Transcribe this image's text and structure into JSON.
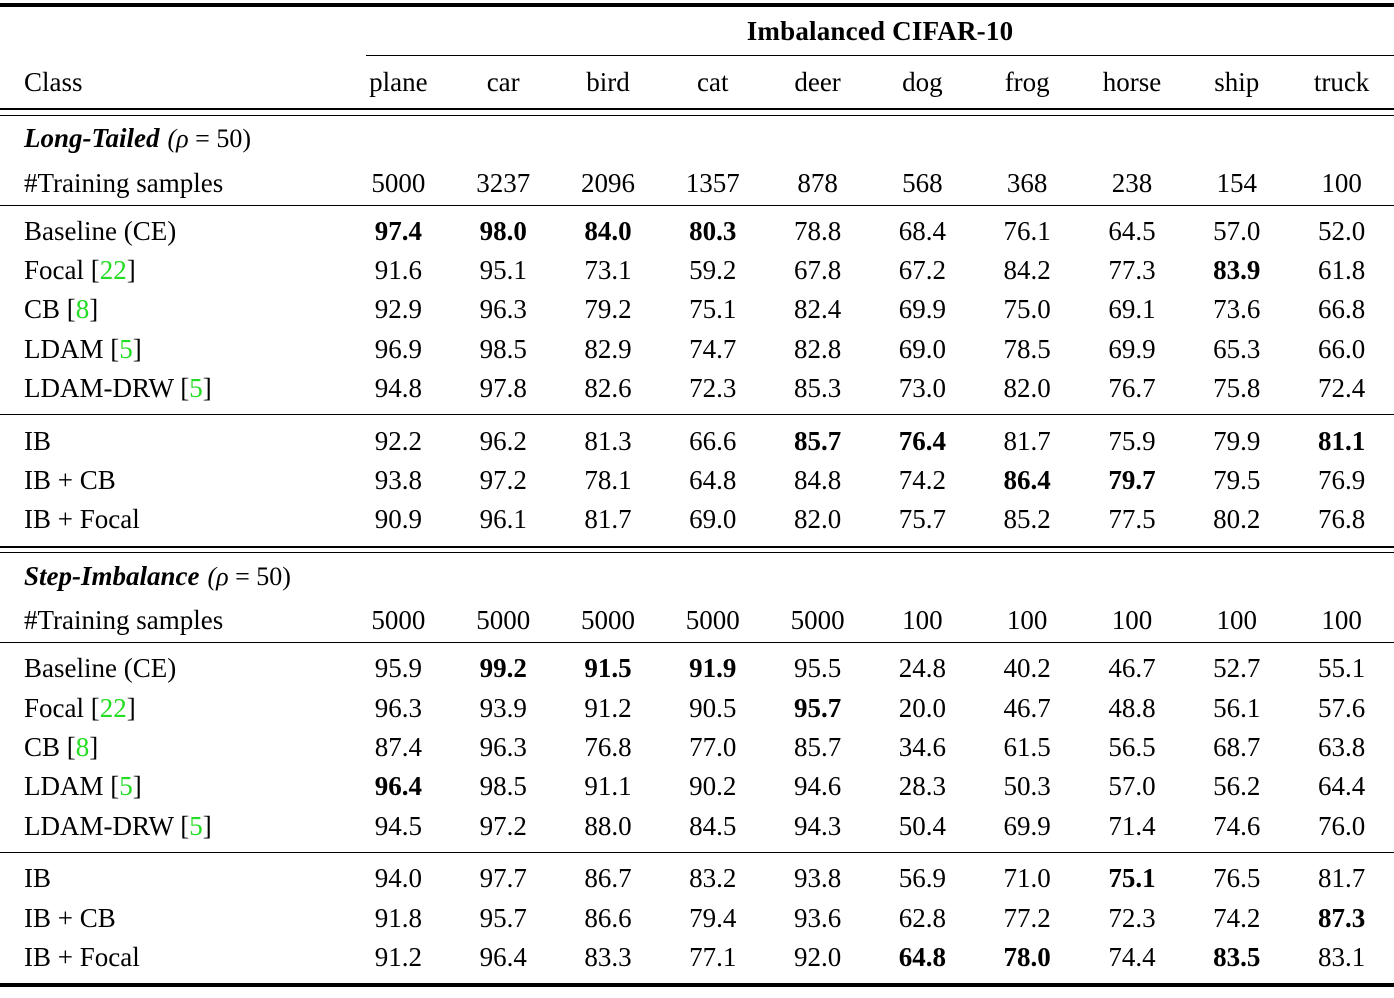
{
  "table": {
    "title": "Imbalanced CIFAR-10",
    "class_header": "Class",
    "columns": [
      "plane",
      "car",
      "bird",
      "cat",
      "deer",
      "dog",
      "frog",
      "horse",
      "ship",
      "truck"
    ],
    "samples_label": "#Training samples",
    "cite_open": "[",
    "cite_close": "]",
    "citation_color": "#22dd22",
    "text_color": "#000000",
    "sections": [
      {
        "name": "Long-Tailed",
        "rho": "= 50)",
        "rho_symbol": "(ρ ",
        "samples": [
          "5000",
          "3237",
          "2096",
          "1357",
          "878",
          "568",
          "368",
          "238",
          "154",
          "100"
        ],
        "groups": [
          {
            "rows": [
              {
                "label": "Baseline (CE)",
                "cite": null,
                "values": [
                  "97.4",
                  "98.0",
                  "84.0",
                  "80.3",
                  "78.8",
                  "68.4",
                  "76.1",
                  "64.5",
                  "57.0",
                  "52.0"
                ],
                "bold": [
                  0,
                  1,
                  2,
                  3
                ]
              },
              {
                "label": "Focal",
                "cite": "22",
                "values": [
                  "91.6",
                  "95.1",
                  "73.1",
                  "59.2",
                  "67.8",
                  "67.2",
                  "84.2",
                  "77.3",
                  "83.9",
                  "61.8"
                ],
                "bold": [
                  8
                ]
              },
              {
                "label": "CB",
                "cite": "8",
                "values": [
                  "92.9",
                  "96.3",
                  "79.2",
                  "75.1",
                  "82.4",
                  "69.9",
                  "75.0",
                  "69.1",
                  "73.6",
                  "66.8"
                ],
                "bold": []
              },
              {
                "label": "LDAM",
                "cite": "5",
                "values": [
                  "96.9",
                  "98.5",
                  "82.9",
                  "74.7",
                  "82.8",
                  "69.0",
                  "78.5",
                  "69.9",
                  "65.3",
                  "66.0"
                ],
                "bold": []
              },
              {
                "label": "LDAM-DRW",
                "cite": "5",
                "values": [
                  "94.8",
                  "97.8",
                  "82.6",
                  "72.3",
                  "85.3",
                  "73.0",
                  "82.0",
                  "76.7",
                  "75.8",
                  "72.4"
                ],
                "bold": []
              }
            ]
          },
          {
            "rows": [
              {
                "label": "IB",
                "cite": null,
                "values": [
                  "92.2",
                  "96.2",
                  "81.3",
                  "66.6",
                  "85.7",
                  "76.4",
                  "81.7",
                  "75.9",
                  "79.9",
                  "81.1"
                ],
                "bold": [
                  4,
                  5,
                  9
                ]
              },
              {
                "label": "IB + CB",
                "cite": null,
                "values": [
                  "93.8",
                  "97.2",
                  "78.1",
                  "64.8",
                  "84.8",
                  "74.2",
                  "86.4",
                  "79.7",
                  "79.5",
                  "76.9"
                ],
                "bold": [
                  6,
                  7
                ]
              },
              {
                "label": "IB + Focal",
                "cite": null,
                "values": [
                  "90.9",
                  "96.1",
                  "81.7",
                  "69.0",
                  "82.0",
                  "75.7",
                  "85.2",
                  "77.5",
                  "80.2",
                  "76.8"
                ],
                "bold": []
              }
            ]
          }
        ]
      },
      {
        "name": "Step-Imbalance",
        "rho": "= 50)",
        "rho_symbol": "(ρ ",
        "samples": [
          "5000",
          "5000",
          "5000",
          "5000",
          "5000",
          "100",
          "100",
          "100",
          "100",
          "100"
        ],
        "groups": [
          {
            "rows": [
              {
                "label": "Baseline (CE)",
                "cite": null,
                "values": [
                  "95.9",
                  "99.2",
                  "91.5",
                  "91.9",
                  "95.5",
                  "24.8",
                  "40.2",
                  "46.7",
                  "52.7",
                  "55.1"
                ],
                "bold": [
                  1,
                  2,
                  3
                ]
              },
              {
                "label": "Focal",
                "cite": "22",
                "values": [
                  "96.3",
                  "93.9",
                  "91.2",
                  "90.5",
                  "95.7",
                  "20.0",
                  "46.7",
                  "48.8",
                  "56.1",
                  "57.6"
                ],
                "bold": [
                  4
                ]
              },
              {
                "label": "CB",
                "cite": "8",
                "values": [
                  "87.4",
                  "96.3",
                  "76.8",
                  "77.0",
                  "85.7",
                  "34.6",
                  "61.5",
                  "56.5",
                  "68.7",
                  "63.8"
                ],
                "bold": []
              },
              {
                "label": "LDAM",
                "cite": "5",
                "values": [
                  "96.4",
                  "98.5",
                  "91.1",
                  "90.2",
                  "94.6",
                  "28.3",
                  "50.3",
                  "57.0",
                  "56.2",
                  "64.4"
                ],
                "bold": [
                  0
                ]
              },
              {
                "label": "LDAM-DRW",
                "cite": "5",
                "values": [
                  "94.5",
                  "97.2",
                  "88.0",
                  "84.5",
                  "94.3",
                  "50.4",
                  "69.9",
                  "71.4",
                  "74.6",
                  "76.0"
                ],
                "bold": []
              }
            ]
          },
          {
            "rows": [
              {
                "label": "IB",
                "cite": null,
                "values": [
                  "94.0",
                  "97.7",
                  "86.7",
                  "83.2",
                  "93.8",
                  "56.9",
                  "71.0",
                  "75.1",
                  "76.5",
                  "81.7"
                ],
                "bold": [
                  7
                ]
              },
              {
                "label": "IB + CB",
                "cite": null,
                "values": [
                  "91.8",
                  "95.7",
                  "86.6",
                  "79.4",
                  "93.6",
                  "62.8",
                  "77.2",
                  "72.3",
                  "74.2",
                  "87.3"
                ],
                "bold": [
                  9
                ]
              },
              {
                "label": "IB + Focal",
                "cite": null,
                "values": [
                  "91.2",
                  "96.4",
                  "83.3",
                  "77.1",
                  "92.0",
                  "64.8",
                  "78.0",
                  "74.4",
                  "83.5",
                  "83.1"
                ],
                "bold": [
                  5,
                  6,
                  8
                ]
              }
            ]
          }
        ]
      }
    ]
  }
}
